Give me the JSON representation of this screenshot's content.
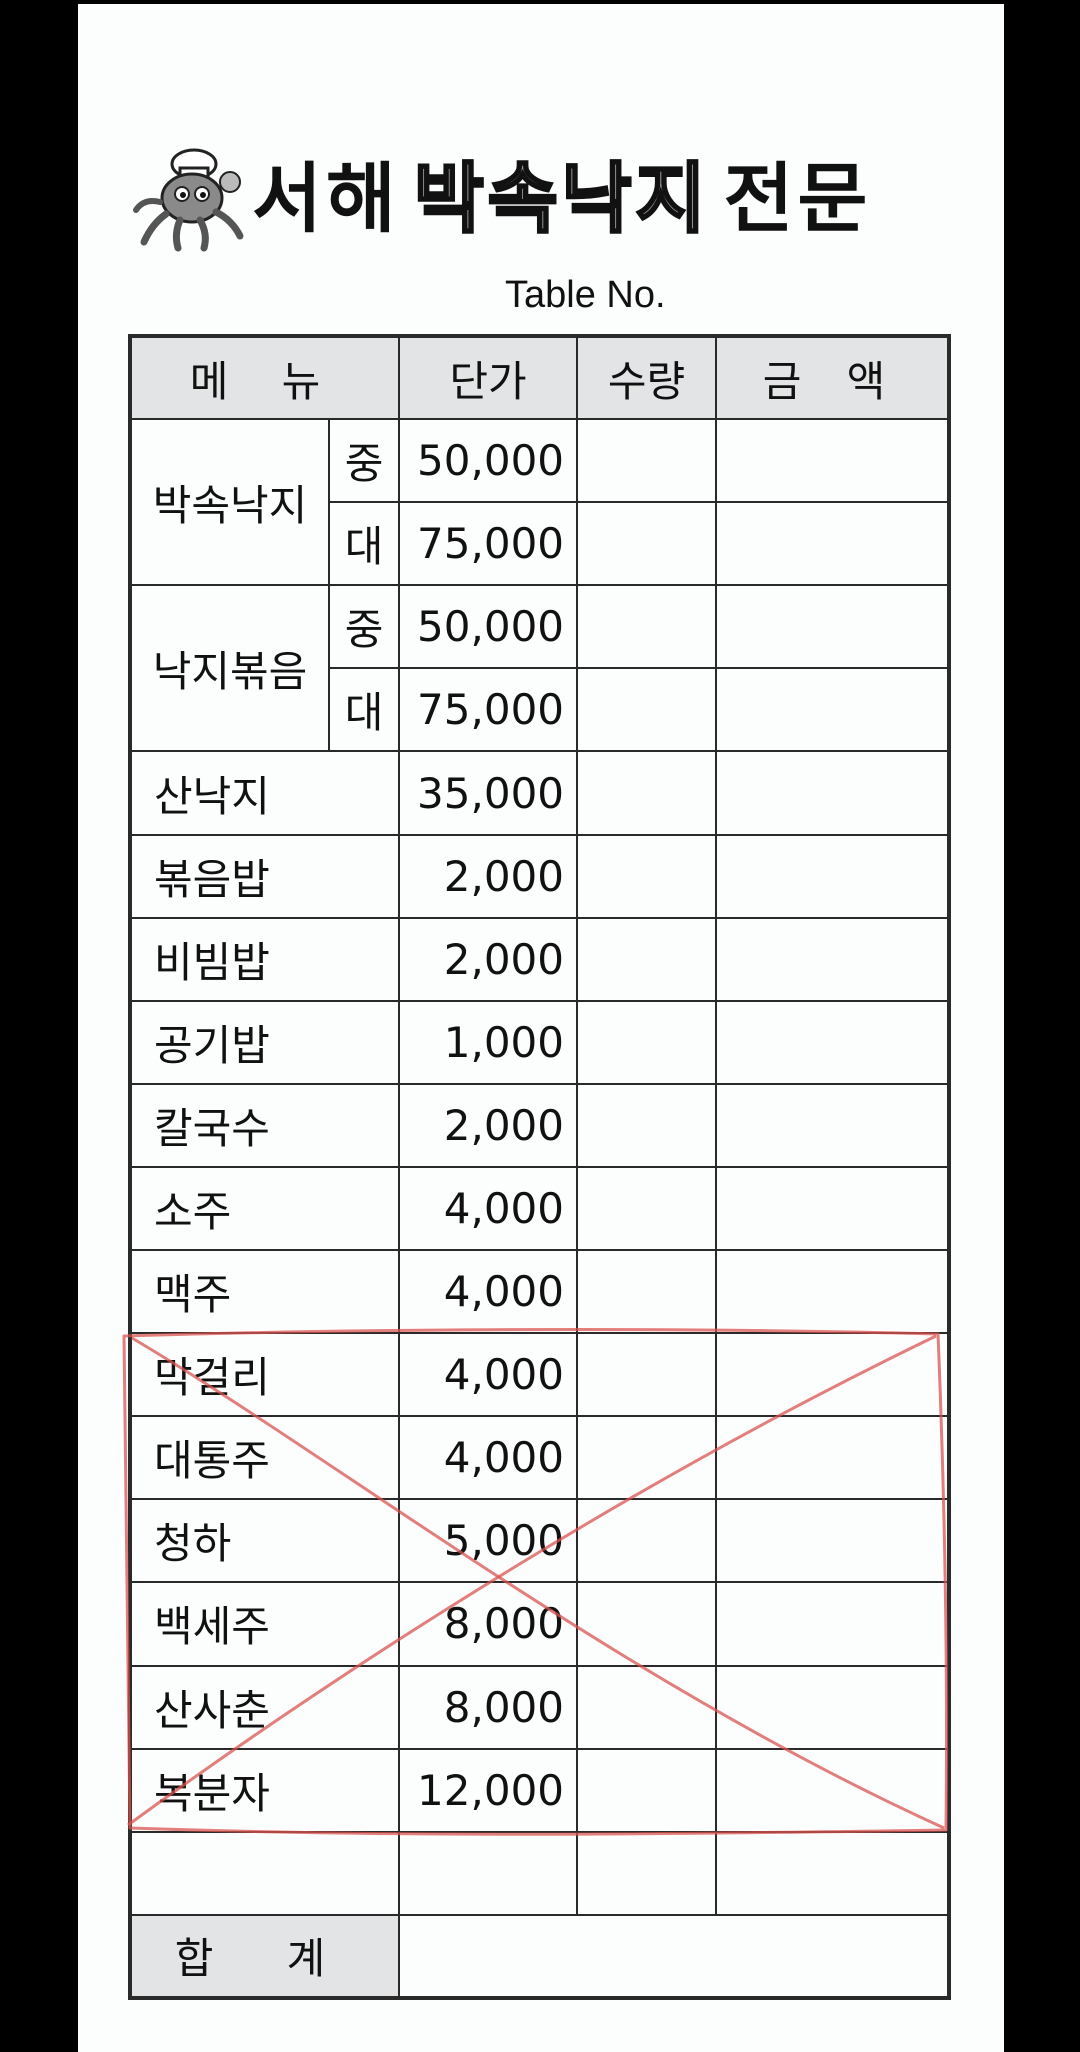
{
  "header": {
    "title_part1": "서해",
    "title_part2": "박속낙지",
    "title_part3": "전문",
    "table_no": "Table No."
  },
  "columns": {
    "menu": "메 뉴",
    "unit_price": "단가",
    "quantity": "수량",
    "amount": "금 액"
  },
  "grouped_items": [
    {
      "name": "박속낙지",
      "sizes": [
        {
          "size": "중",
          "price": "50,000"
        },
        {
          "size": "대",
          "price": "75,000"
        }
      ]
    },
    {
      "name": "낙지볶음",
      "sizes": [
        {
          "size": "중",
          "price": "50,000"
        },
        {
          "size": "대",
          "price": "75,000"
        }
      ]
    }
  ],
  "items": [
    {
      "name": "산낙지",
      "price": "35,000"
    },
    {
      "name": "볶음밥",
      "price": "2,000"
    },
    {
      "name": "비빔밥",
      "price": "2,000"
    },
    {
      "name": "공기밥",
      "price": "1,000"
    },
    {
      "name": "칼국수",
      "price": "2,000"
    },
    {
      "name": "소주",
      "price": "4,000"
    },
    {
      "name": "맥주",
      "price": "4,000"
    },
    {
      "name": "막걸리",
      "price": "4,000"
    },
    {
      "name": "대통주",
      "price": "4,000"
    },
    {
      "name": "청하",
      "price": "5,000"
    },
    {
      "name": "백세주",
      "price": "8,000"
    },
    {
      "name": "산사춘",
      "price": "8,000"
    },
    {
      "name": "복분자",
      "price": "12,000"
    }
  ],
  "total_label": "합 계",
  "colors": {
    "background": "#000000",
    "paper": "#fcfdfd",
    "header_fill": "#e2e4e5",
    "line": "#2a2a2a",
    "cross_mark": "#d9534f"
  }
}
